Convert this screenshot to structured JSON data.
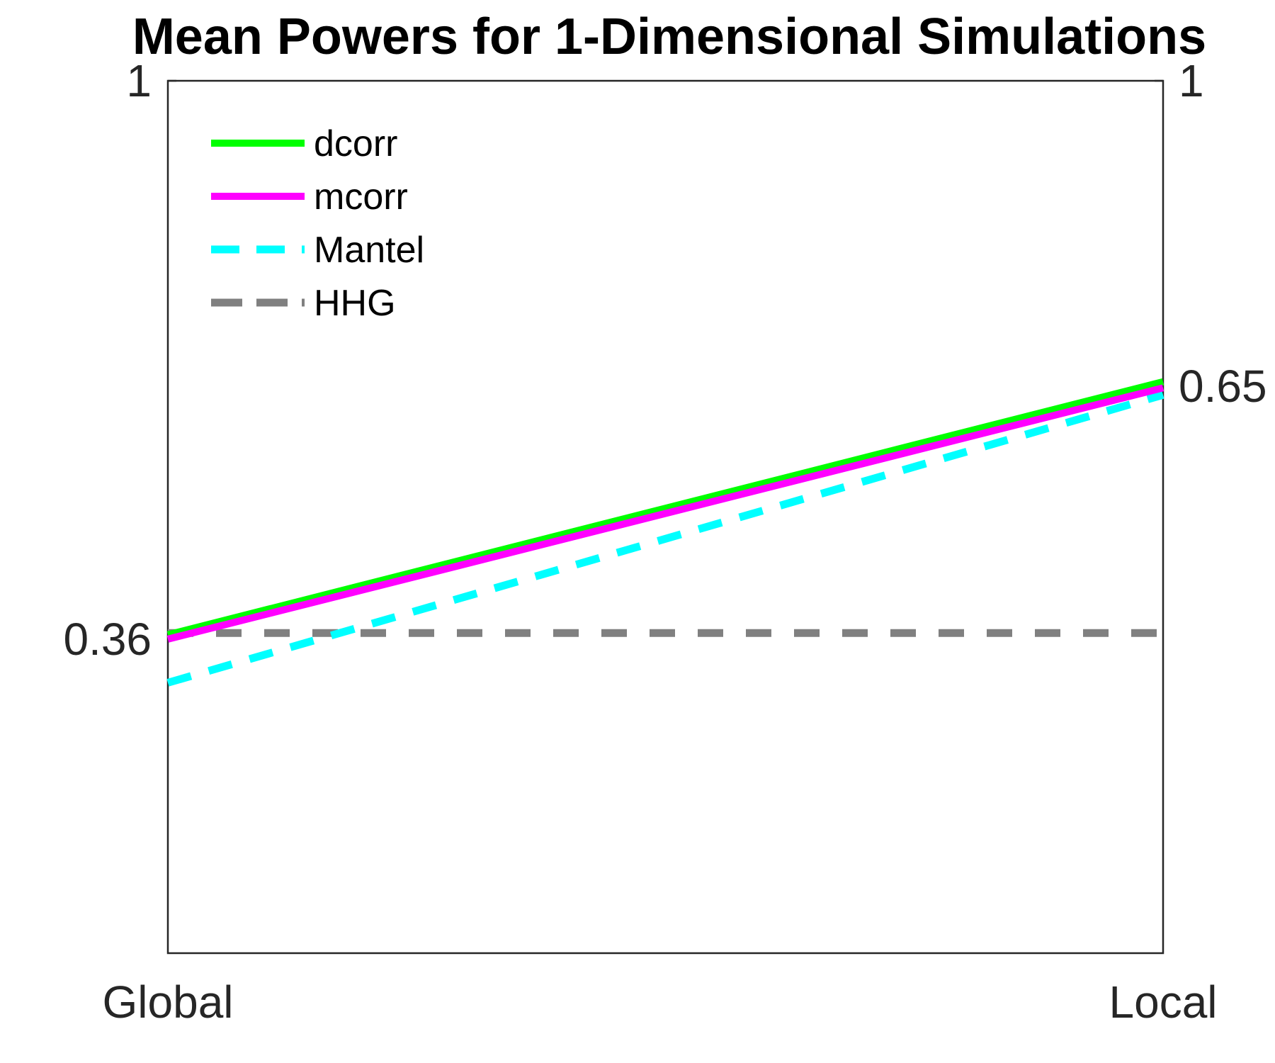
{
  "chart_data": {
    "type": "line",
    "title": "Mean Powers for 1-Dimensional Simulations",
    "categories": [
      "Global",
      "Local"
    ],
    "xlabel": "",
    "ylabel": "",
    "ylim": [
      0,
      1
    ],
    "left_tick_labels": [
      "1",
      "0.36"
    ],
    "right_tick_labels": [
      "1",
      "0.65"
    ],
    "grid": false,
    "legend_position": "top-left",
    "series": [
      {
        "name": "dcorr",
        "values": [
          0.365,
          0.655
        ],
        "color": "#00ff00",
        "style": "solid"
      },
      {
        "name": "mcorr",
        "values": [
          0.36,
          0.648
        ],
        "color": "#ff00ff",
        "style": "solid"
      },
      {
        "name": "Mantel",
        "values": [
          0.31,
          0.64
        ],
        "color": "#00ffff",
        "style": "dashed"
      },
      {
        "name": "HHG",
        "values": [
          0.367,
          0.367
        ],
        "color": "#808080",
        "style": "dashed"
      }
    ]
  }
}
